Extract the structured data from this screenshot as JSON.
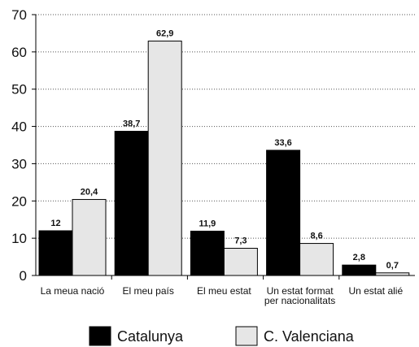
{
  "chart_data": {
    "type": "bar",
    "categories": [
      [
        "La meua nació"
      ],
      [
        "El meu país"
      ],
      [
        "El meu estat"
      ],
      [
        "Un estat format",
        "per nacionalitats"
      ],
      [
        "Un estat alié"
      ]
    ],
    "series": [
      {
        "name": "Catalunya",
        "color": "#000000",
        "values": [
          12,
          38.7,
          11.9,
          33.6,
          2.8
        ],
        "labels": [
          "12",
          "38,7",
          "11,9",
          "33,6",
          "2,8"
        ]
      },
      {
        "name": "C. Valenciana",
        "color": "#e6e6e6",
        "values": [
          20.4,
          62.9,
          7.3,
          8.6,
          0.7
        ],
        "labels": [
          "20,4",
          "62,9",
          "7,3",
          "8,6",
          "0,7"
        ]
      }
    ],
    "ylim": [
      0,
      70
    ],
    "yticks": [
      0,
      10,
      20,
      30,
      40,
      50,
      60,
      70
    ],
    "grid": "horizontal-dotted",
    "legend_position": "bottom"
  }
}
